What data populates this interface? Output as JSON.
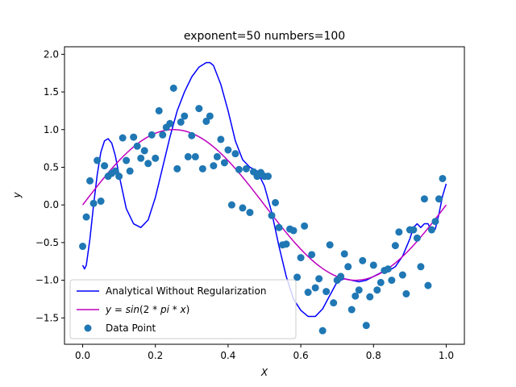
{
  "chart_data": {
    "type": "scatter",
    "title": "exponent=50 numbers=100",
    "xlabel": "X",
    "ylabel": "y",
    "xlim": [
      -0.05,
      1.05
    ],
    "ylim": [
      -1.85,
      2.1
    ],
    "xticks": [
      "0.0",
      "0.2",
      "0.4",
      "0.6",
      "0.8",
      "1.0"
    ],
    "yticks": [
      "−1.5",
      "−1.0",
      "−0.5",
      "0.0",
      "0.5",
      "1.0",
      "1.5",
      "2.0"
    ],
    "grid": false,
    "legend_position": "lower-left",
    "legend": [
      {
        "label": "Analytical Without Regularization",
        "kind": "line",
        "color": "#0000ff"
      },
      {
        "label": "y = sin(2 * pi * x)",
        "kind": "line",
        "color": "#bf00bf"
      },
      {
        "label": "Data Point",
        "kind": "marker",
        "color": "#1f77b4"
      }
    ],
    "series": [
      {
        "name": "Analytical Without Regularization",
        "kind": "line",
        "color": "#0000ff",
        "x": [
          0.0,
          0.005,
          0.01,
          0.02,
          0.03,
          0.04,
          0.05,
          0.06,
          0.07,
          0.08,
          0.09,
          0.1,
          0.12,
          0.14,
          0.16,
          0.18,
          0.2,
          0.22,
          0.24,
          0.26,
          0.28,
          0.3,
          0.32,
          0.34,
          0.35,
          0.36,
          0.38,
          0.4,
          0.42,
          0.44,
          0.46,
          0.48,
          0.5,
          0.52,
          0.54,
          0.56,
          0.58,
          0.6,
          0.62,
          0.64,
          0.66,
          0.68,
          0.7,
          0.72,
          0.74,
          0.76,
          0.78,
          0.8,
          0.82,
          0.84,
          0.86,
          0.88,
          0.9,
          0.91,
          0.92,
          0.93,
          0.94,
          0.95,
          0.96,
          0.97,
          0.98,
          0.99,
          1.0
        ],
        "y": [
          -0.8,
          -0.85,
          -0.8,
          -0.45,
          0.0,
          0.4,
          0.7,
          0.85,
          0.88,
          0.82,
          0.65,
          0.4,
          -0.05,
          -0.25,
          -0.3,
          -0.2,
          0.1,
          0.5,
          0.9,
          1.25,
          1.5,
          1.7,
          1.83,
          1.89,
          1.89,
          1.85,
          1.6,
          1.25,
          0.85,
          0.6,
          0.5,
          0.45,
          0.25,
          -0.1,
          -0.55,
          -0.95,
          -1.25,
          -1.4,
          -1.48,
          -1.48,
          -1.38,
          -1.2,
          -1.02,
          -0.98,
          -1.0,
          -1.02,
          -1.0,
          -0.95,
          -0.9,
          -0.88,
          -0.82,
          -0.68,
          -0.45,
          -0.3,
          -0.25,
          -0.3,
          -0.25,
          -0.25,
          -0.35,
          -0.32,
          -0.12,
          0.12,
          0.28
        ]
      },
      {
        "name": "y = sin(2 * pi * x)",
        "kind": "function",
        "color": "#bf00bf",
        "samples": 201
      },
      {
        "name": "Data Point",
        "kind": "scatter",
        "color": "#1f77b4",
        "points": [
          [
            0.0,
            -0.55
          ],
          [
            0.01,
            -0.16
          ],
          [
            0.02,
            0.32
          ],
          [
            0.03,
            0.02
          ],
          [
            0.04,
            0.59
          ],
          [
            0.05,
            0.05
          ],
          [
            0.06,
            0.52
          ],
          [
            0.07,
            0.38
          ],
          [
            0.08,
            0.42
          ],
          [
            0.09,
            0.45
          ],
          [
            0.1,
            0.38
          ],
          [
            0.11,
            0.89
          ],
          [
            0.12,
            0.59
          ],
          [
            0.13,
            0.45
          ],
          [
            0.14,
            0.9
          ],
          [
            0.15,
            0.78
          ],
          [
            0.16,
            0.62
          ],
          [
            0.17,
            0.72
          ],
          [
            0.18,
            0.55
          ],
          [
            0.19,
            0.93
          ],
          [
            0.2,
            0.62
          ],
          [
            0.21,
            1.25
          ],
          [
            0.22,
            0.93
          ],
          [
            0.23,
            1.03
          ],
          [
            0.24,
            1.08
          ],
          [
            0.25,
            1.55
          ],
          [
            0.26,
            0.48
          ],
          [
            0.27,
            1.1
          ],
          [
            0.28,
            1.18
          ],
          [
            0.29,
            0.64
          ],
          [
            0.3,
            0.92
          ],
          [
            0.31,
            0.64
          ],
          [
            0.32,
            1.28
          ],
          [
            0.33,
            0.48
          ],
          [
            0.34,
            1.11
          ],
          [
            0.35,
            1.18
          ],
          [
            0.36,
            0.52
          ],
          [
            0.37,
            0.64
          ],
          [
            0.38,
            0.87
          ],
          [
            0.39,
            0.56
          ],
          [
            0.4,
            0.73
          ],
          [
            0.41,
            0.0
          ],
          [
            0.42,
            0.68
          ],
          [
            0.43,
            0.47
          ],
          [
            0.44,
            -0.04
          ],
          [
            0.45,
            0.48
          ],
          [
            0.46,
            -0.1
          ],
          [
            0.47,
            0.44
          ],
          [
            0.48,
            0.38
          ],
          [
            0.49,
            0.43
          ],
          [
            0.5,
            0.38
          ],
          [
            0.51,
            0.38
          ],
          [
            0.52,
            -0.14
          ],
          [
            0.53,
            0.03
          ],
          [
            0.54,
            -0.3
          ],
          [
            0.55,
            -0.53
          ],
          [
            0.56,
            -0.52
          ],
          [
            0.57,
            -0.32
          ],
          [
            0.58,
            -0.34
          ],
          [
            0.59,
            -0.96
          ],
          [
            0.6,
            -0.7
          ],
          [
            0.61,
            -0.28
          ],
          [
            0.62,
            -1.16
          ],
          [
            0.63,
            -0.66
          ],
          [
            0.64,
            -1.1
          ],
          [
            0.65,
            -0.98
          ],
          [
            0.66,
            -1.67
          ],
          [
            0.67,
            -1.15
          ],
          [
            0.68,
            -0.53
          ],
          [
            0.69,
            -1.3
          ],
          [
            0.7,
            -1.0
          ],
          [
            0.71,
            -0.95
          ],
          [
            0.72,
            -0.65
          ],
          [
            0.73,
            -0.82
          ],
          [
            0.74,
            -1.39
          ],
          [
            0.75,
            -1.21
          ],
          [
            0.76,
            -1.13
          ],
          [
            0.77,
            -0.74
          ],
          [
            0.78,
            -1.6
          ],
          [
            0.79,
            -1.22
          ],
          [
            0.8,
            -0.8
          ],
          [
            0.81,
            -1.13
          ],
          [
            0.82,
            -1.03
          ],
          [
            0.83,
            -0.87
          ],
          [
            0.84,
            -0.85
          ],
          [
            0.85,
            -1.0
          ],
          [
            0.86,
            -0.54
          ],
          [
            0.87,
            -0.36
          ],
          [
            0.88,
            -0.93
          ],
          [
            0.89,
            -1.18
          ],
          [
            0.9,
            -0.33
          ],
          [
            0.91,
            -0.33
          ],
          [
            0.92,
            -0.44
          ],
          [
            0.93,
            -0.82
          ],
          [
            0.94,
            0.08
          ],
          [
            0.95,
            -1.07
          ],
          [
            0.96,
            -0.33
          ],
          [
            0.97,
            -0.22
          ],
          [
            0.98,
            0.08
          ],
          [
            0.99,
            0.35
          ]
        ]
      }
    ]
  }
}
